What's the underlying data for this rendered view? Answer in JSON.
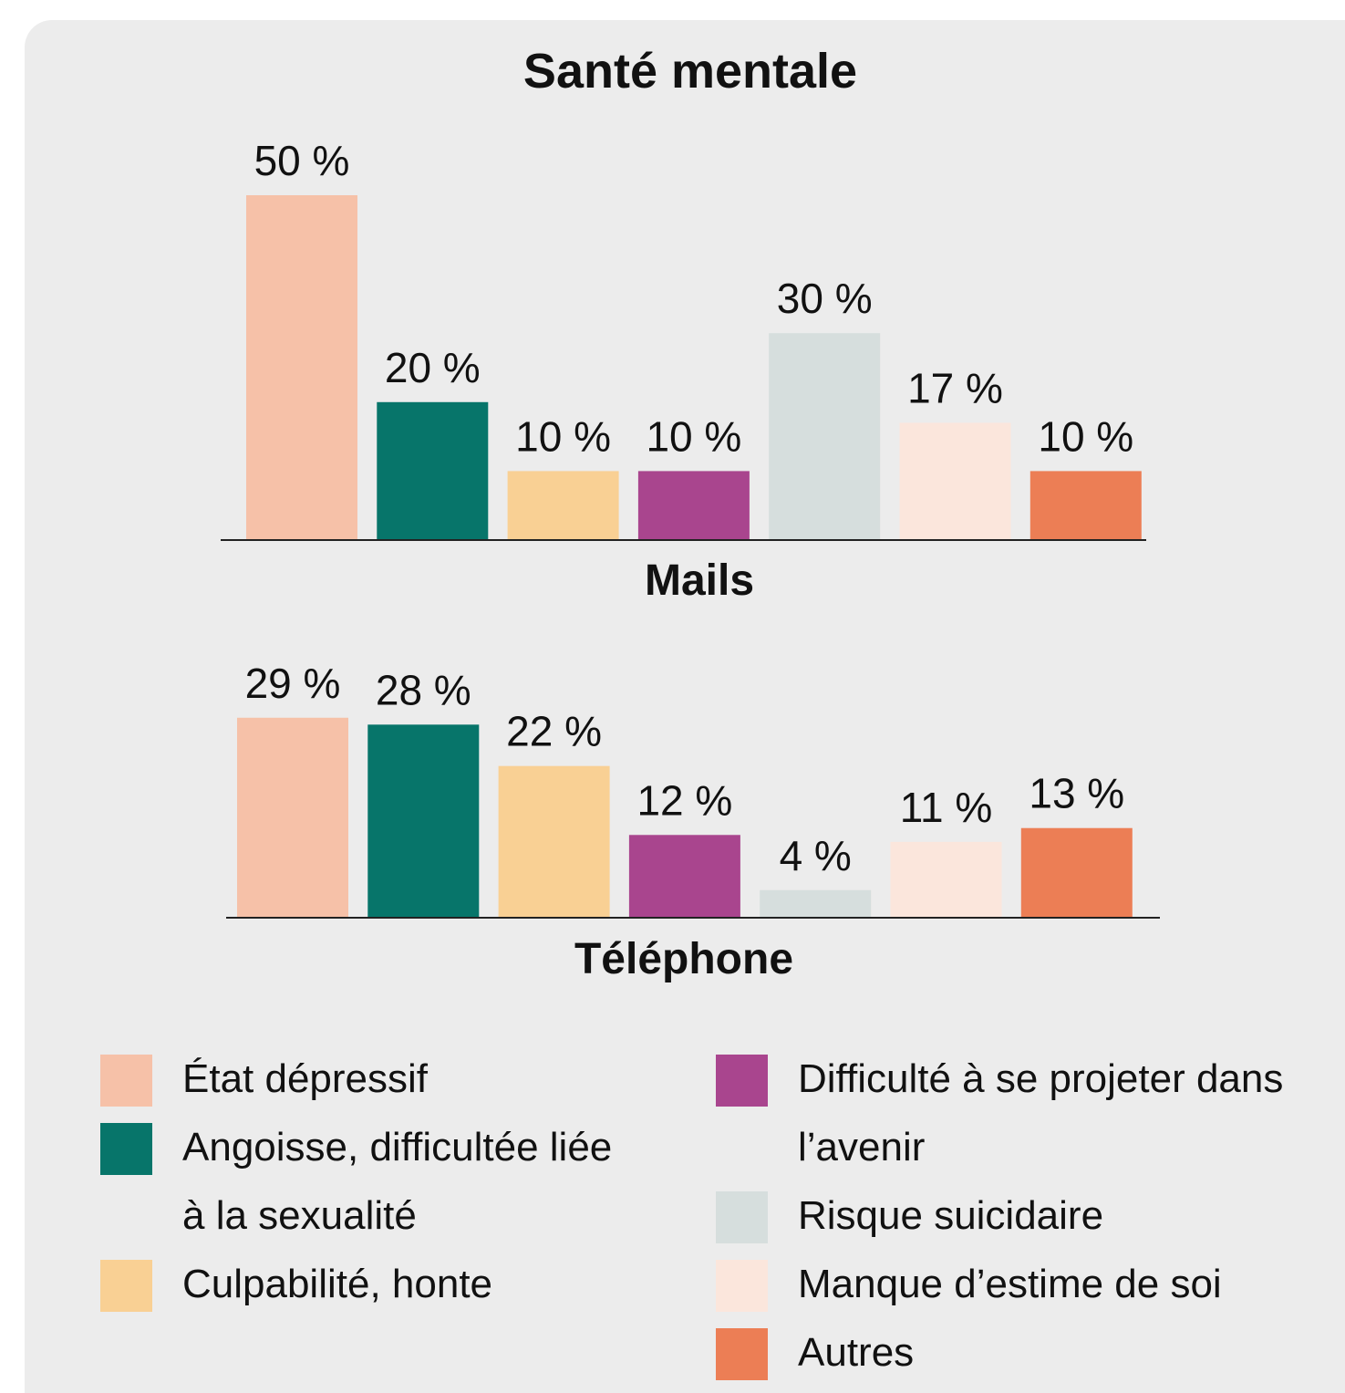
{
  "title": "Santé mentale",
  "chart_data": [
    {
      "type": "bar",
      "xlabel": "Mails",
      "categories": [
        "État dépressif",
        "Angoisse, difficultée liée à la sexualité",
        "Culpabilité, honte",
        "Difficulté à se projeter dans l’avenir",
        "Risque suicidaire",
        "Manque d’estime de soi",
        "Autres"
      ],
      "colors": [
        "#f6c1a8",
        "#07756a",
        "#f9d094",
        "#a9458e",
        "#d6dedd",
        "#fbe6dc",
        "#ec7e55"
      ],
      "values": [
        50,
        20,
        10,
        10,
        30,
        17,
        10
      ],
      "value_labels": [
        "50 %",
        "20 %",
        "10 %",
        "10 %",
        "30 %",
        "17 %",
        "10 %"
      ]
    },
    {
      "type": "bar",
      "xlabel": "Téléphone",
      "categories": [
        "État dépressif",
        "Angoisse, difficultée liée à la sexualité",
        "Culpabilité, honte",
        "Difficulté à se projeter dans l’avenir",
        "Risque suicidaire",
        "Manque d’estime de soi",
        "Autres"
      ],
      "colors": [
        "#f6c1a8",
        "#07756a",
        "#f9d094",
        "#a9458e",
        "#d6dedd",
        "#fbe6dc",
        "#ec7e55"
      ],
      "values": [
        29,
        28,
        22,
        12,
        4,
        11,
        13
      ],
      "value_labels": [
        "29 %",
        "28 %",
        "22 %",
        "12 %",
        "4 %",
        "11 %",
        "13 %"
      ]
    }
  ]
}
